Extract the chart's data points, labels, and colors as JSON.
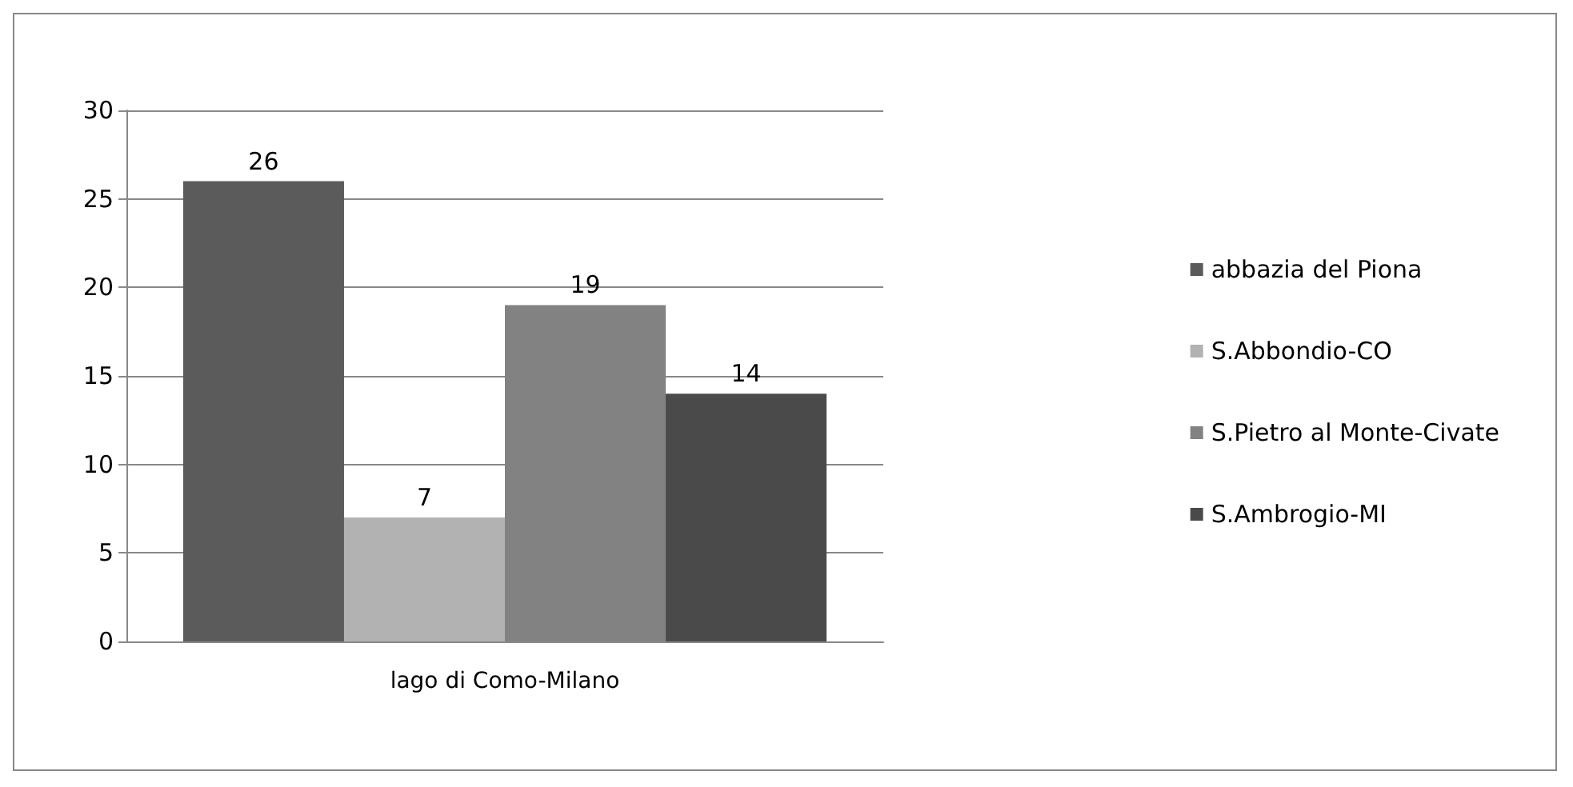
{
  "chart_data": {
    "type": "bar",
    "categories": [
      "lago di Como-Milano"
    ],
    "series": [
      {
        "name": "abbazia del Piona",
        "color": "#5b5b5b",
        "values": [
          26
        ]
      },
      {
        "name": "S.Abbondio-CO",
        "color": "#b2b2b2",
        "values": [
          7
        ]
      },
      {
        "name": "S.Pietro al Monte-Civate",
        "color": "#828282",
        "values": [
          19
        ]
      },
      {
        "name": "S.Ambrogio-MI",
        "color": "#4a4a4a",
        "values": [
          14
        ]
      }
    ],
    "ylim": [
      0,
      30
    ],
    "yticks": [
      0,
      5,
      10,
      15,
      20,
      25,
      30
    ],
    "grid": true,
    "legend": "right",
    "data_labels": true
  }
}
